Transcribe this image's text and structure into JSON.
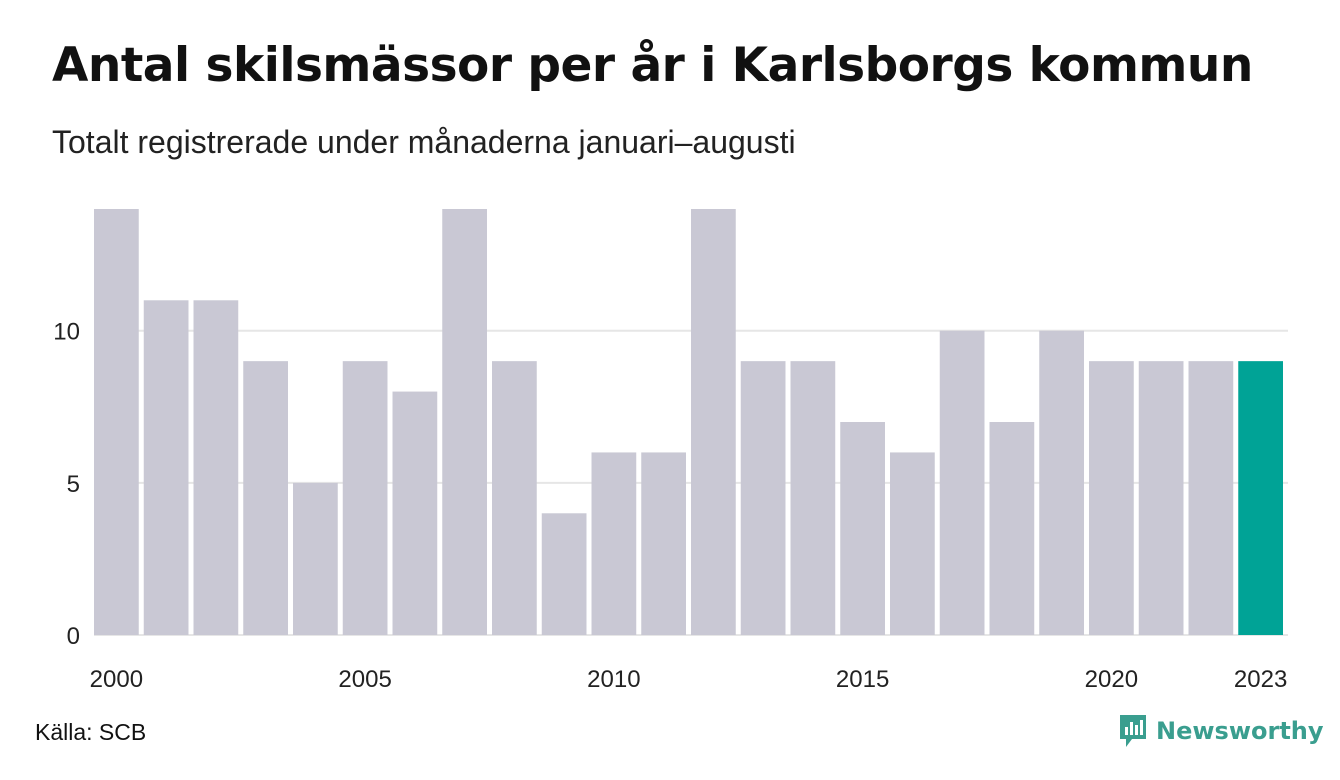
{
  "title": "Antal skilsmässor per år i Karlsborgs kommun",
  "subtitle": "Totalt registrerade under månaderna januari–augusti",
  "source": "Källa: SCB",
  "logo_text": "Newsworthy",
  "colors": {
    "bar_default": "#c9c8d4",
    "bar_highlight": "#00a396",
    "gridline": "#e6e6e6",
    "logo": "#3a9e8f"
  },
  "chart_data": {
    "type": "bar",
    "categories": [
      "2000",
      "2001",
      "2002",
      "2003",
      "2004",
      "2005",
      "2006",
      "2007",
      "2008",
      "2009",
      "2010",
      "2011",
      "2012",
      "2013",
      "2014",
      "2015",
      "2016",
      "2017",
      "2018",
      "2019",
      "2020",
      "2021",
      "2022",
      "2023"
    ],
    "values": [
      14,
      11,
      11,
      9,
      5,
      9,
      8,
      14,
      9,
      4,
      6,
      6,
      14,
      9,
      9,
      7,
      6,
      10,
      7,
      10,
      9,
      9,
      9,
      9
    ],
    "highlight": "2023",
    "x_tick_labels": [
      "2000",
      "2005",
      "2010",
      "2015",
      "2020",
      "2023"
    ],
    "y_ticks": [
      0,
      5,
      10
    ],
    "ylim": [
      0,
      14
    ],
    "grid": true
  }
}
